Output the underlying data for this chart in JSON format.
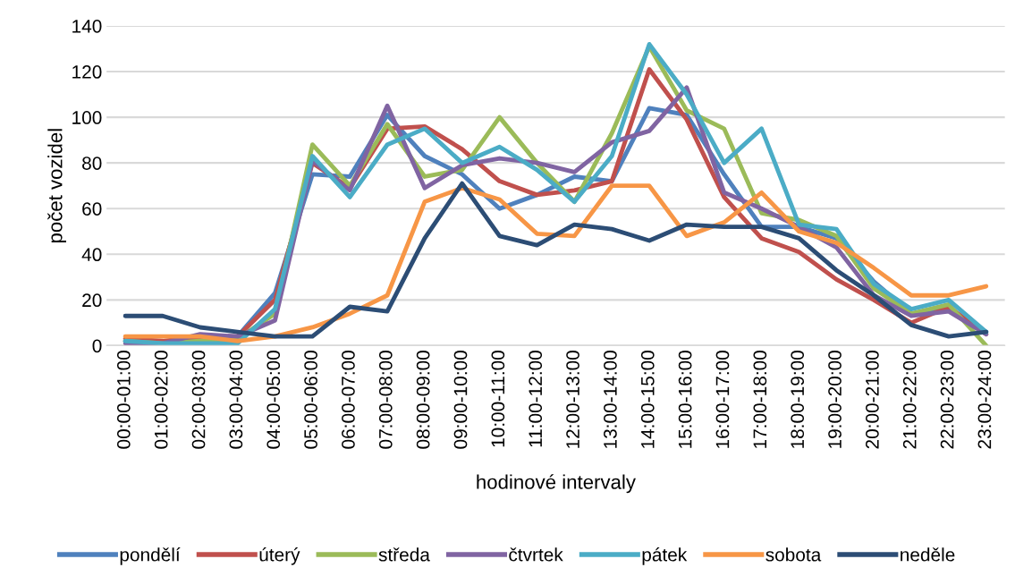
{
  "chart_data": {
    "type": "line",
    "xlabel": "hodinové intervaly",
    "ylabel": "počet vozidel",
    "categories": [
      "00:00-01:00",
      "01:00-02:00",
      "02:00-03:00",
      "03:00-04:00",
      "04:00-05:00",
      "05:00-06:00",
      "06:00-07:00",
      "07:00-08:00",
      "08:00-09:00",
      "09:00-10:00",
      "10:00-11:00",
      "11:00-12:00",
      "12:00-13:00",
      "13:00-14:00",
      "14:00-15:00",
      "15:00-16:00",
      "16:00-17:00",
      "17:00-18:00",
      "18:00-19:00",
      "19:00-20:00",
      "20:00-21:00",
      "21:00-22:00",
      "22:00-23:00",
      "23:00-24:00"
    ],
    "series": [
      {
        "name": "pondělí",
        "color": "#4f81bd",
        "values": [
          2,
          1,
          3,
          4,
          23,
          75,
          74,
          101,
          83,
          75,
          60,
          66,
          74,
          72,
          104,
          101,
          75,
          52,
          52,
          47,
          28,
          14,
          16,
          6
        ]
      },
      {
        "name": "úterý",
        "color": "#c0504d",
        "values": [
          3,
          2,
          4,
          4,
          20,
          80,
          69,
          95,
          96,
          86,
          72,
          66,
          68,
          72,
          121,
          99,
          65,
          47,
          41,
          29,
          20,
          10,
          17,
          5
        ]
      },
      {
        "name": "středa",
        "color": "#9bbb59",
        "values": [
          2,
          1,
          2,
          3,
          14,
          88,
          70,
          97,
          74,
          77,
          100,
          80,
          63,
          93,
          131,
          103,
          95,
          58,
          55,
          48,
          25,
          14,
          18,
          0
        ]
      },
      {
        "name": "čtvrtek",
        "color": "#8064a2",
        "values": [
          1,
          1,
          5,
          4,
          11,
          81,
          68,
          105,
          69,
          79,
          82,
          80,
          76,
          89,
          94,
          113,
          67,
          60,
          52,
          43,
          22,
          13,
          15,
          5
        ]
      },
      {
        "name": "pátek",
        "color": "#4bacc6",
        "values": [
          2,
          1,
          1,
          1,
          16,
          83,
          65,
          88,
          95,
          80,
          87,
          77,
          63,
          83,
          132,
          110,
          80,
          95,
          53,
          51,
          27,
          16,
          20,
          6
        ]
      },
      {
        "name": "sobota",
        "color": "#f79646",
        "values": [
          4,
          4,
          4,
          2,
          4,
          8,
          14,
          22,
          63,
          69,
          64,
          49,
          48,
          70,
          70,
          48,
          54,
          67,
          50,
          45,
          34,
          22,
          22,
          26
        ]
      },
      {
        "name": "neděle",
        "color": "#2c4d75",
        "values": [
          13,
          13,
          8,
          6,
          4,
          4,
          17,
          15,
          47,
          71,
          48,
          44,
          53,
          51,
          46,
          53,
          52,
          52,
          47,
          33,
          22,
          9,
          4,
          6
        ]
      }
    ],
    "ylim": [
      0,
      140
    ],
    "yticks": [
      0,
      20,
      40,
      60,
      80,
      100,
      120,
      140
    ],
    "grid": "y",
    "legend": "bottom",
    "marker": "none",
    "line_style": "solid"
  }
}
